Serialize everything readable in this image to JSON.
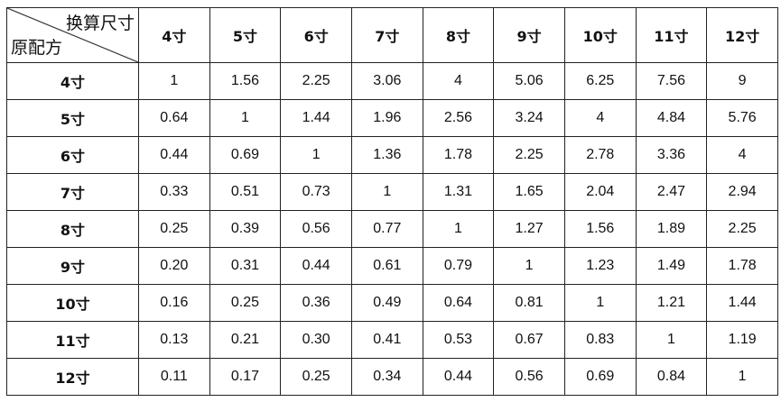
{
  "table": {
    "corner_top_label": "换算尺寸",
    "corner_bottom_label": "原配方",
    "columns": [
      "4寸",
      "5寸",
      "6寸",
      "7寸",
      "8寸",
      "9寸",
      "10寸",
      "11寸",
      "12寸"
    ],
    "rows": [
      {
        "label": "4寸",
        "values": [
          "1",
          "1.56",
          "2.25",
          "3.06",
          "4",
          "5.06",
          "6.25",
          "7.56",
          "9"
        ]
      },
      {
        "label": "5寸",
        "values": [
          "0.64",
          "1",
          "1.44",
          "1.96",
          "2.56",
          "3.24",
          "4",
          "4.84",
          "5.76"
        ]
      },
      {
        "label": "6寸",
        "values": [
          "0.44",
          "0.69",
          "1",
          "1.36",
          "1.78",
          "2.25",
          "2.78",
          "3.36",
          "4"
        ]
      },
      {
        "label": "7寸",
        "values": [
          "0.33",
          "0.51",
          "0.73",
          "1",
          "1.31",
          "1.65",
          "2.04",
          "2.47",
          "2.94"
        ]
      },
      {
        "label": "8寸",
        "values": [
          "0.25",
          "0.39",
          "0.56",
          "0.77",
          "1",
          "1.27",
          "1.56",
          "1.89",
          "2.25"
        ]
      },
      {
        "label": "9寸",
        "values": [
          "0.20",
          "0.31",
          "0.44",
          "0.61",
          "0.79",
          "1",
          "1.23",
          "1.49",
          "1.78"
        ]
      },
      {
        "label": "10寸",
        "values": [
          "0.16",
          "0.25",
          "0.36",
          "0.49",
          "0.64",
          "0.81",
          "1",
          "1.21",
          "1.44"
        ]
      },
      {
        "label": "11寸",
        "values": [
          "0.13",
          "0.21",
          "0.30",
          "0.41",
          "0.53",
          "0.67",
          "0.83",
          "1",
          "1.19"
        ]
      },
      {
        "label": "12寸",
        "values": [
          "0.11",
          "0.17",
          "0.25",
          "0.34",
          "0.44",
          "0.56",
          "0.69",
          "0.84",
          "1"
        ]
      }
    ]
  }
}
